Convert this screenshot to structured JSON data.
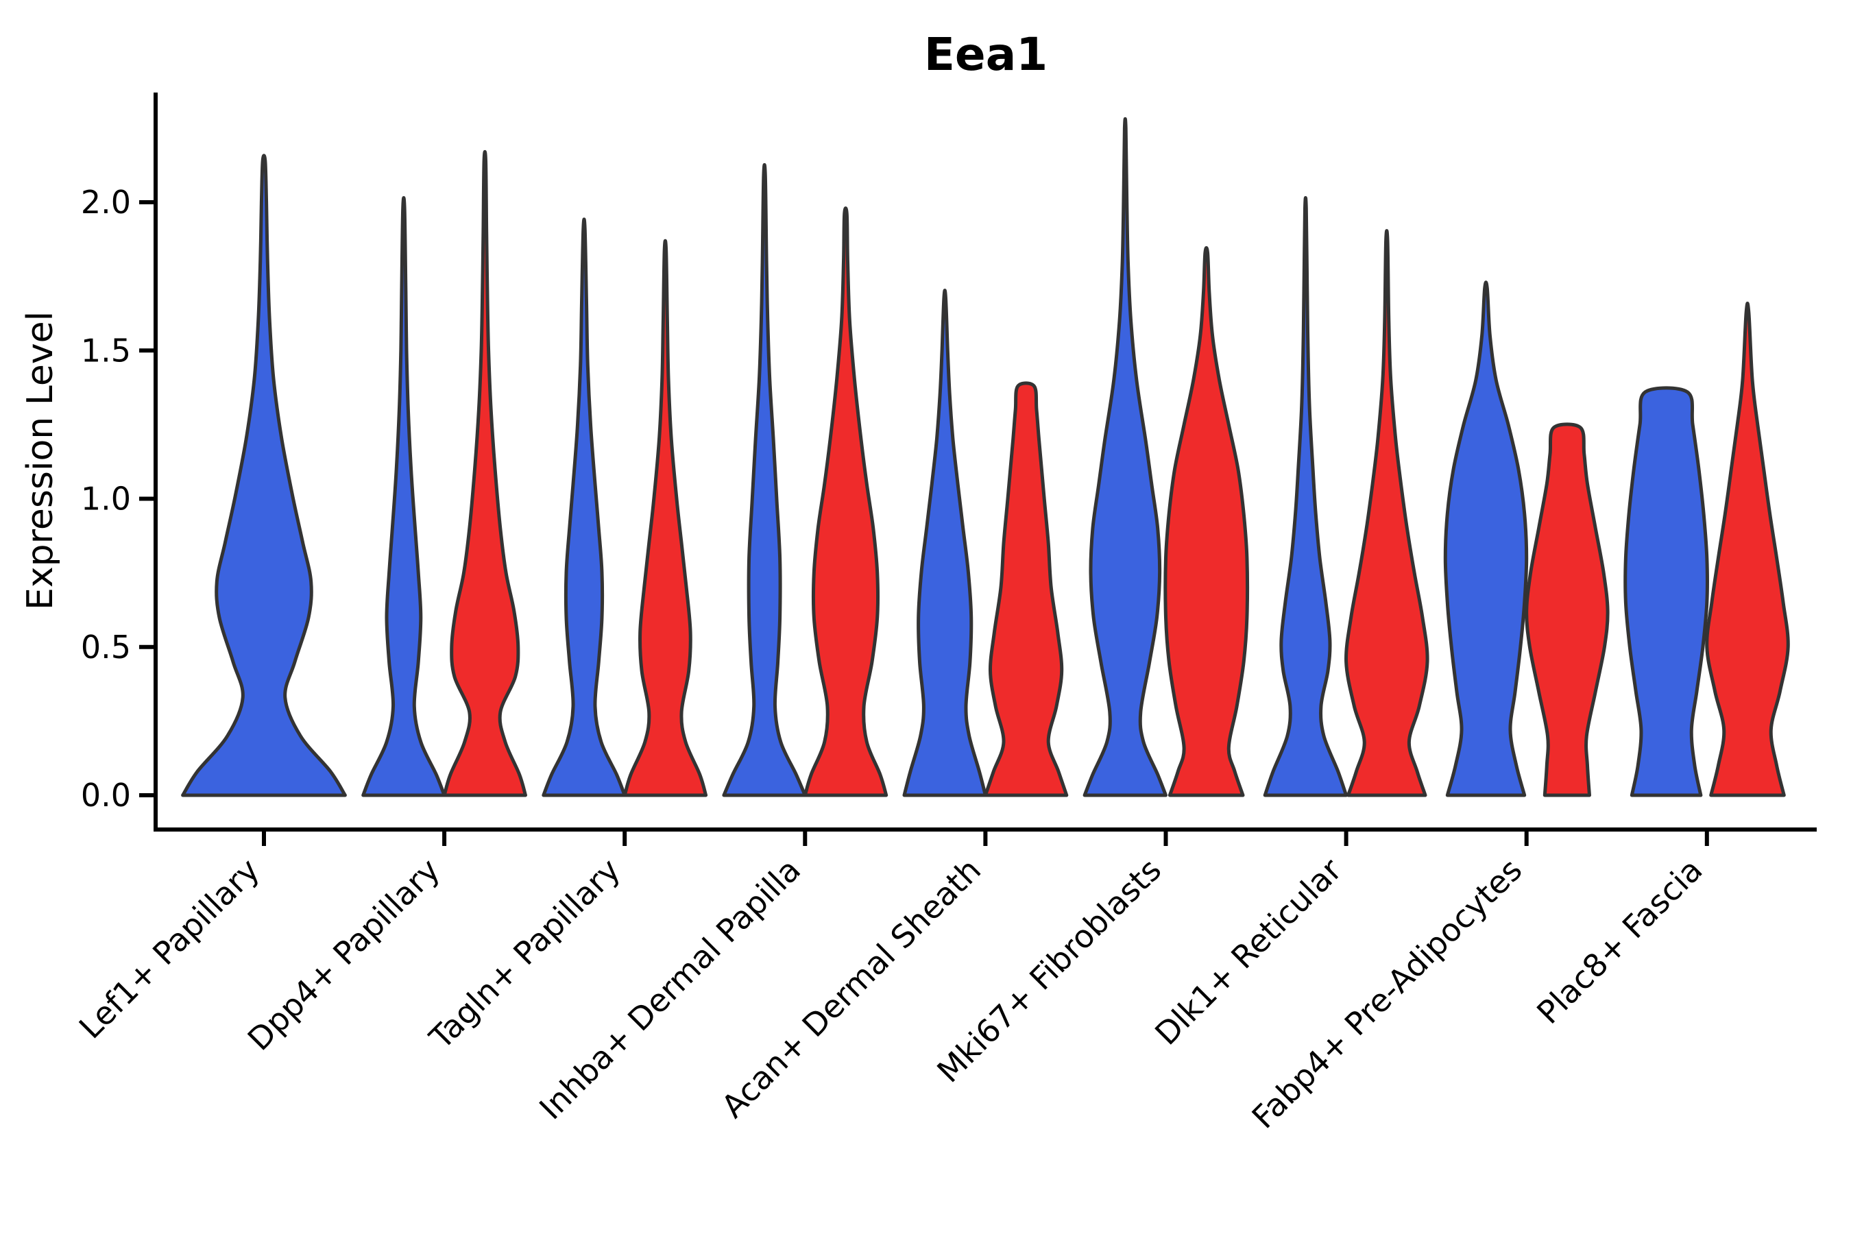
{
  "title": "Eea1",
  "y_axis": {
    "label": "Expression Level",
    "tick_labels": [
      "0.0",
      "0.5",
      "1.0",
      "1.5",
      "2.0"
    ],
    "tick_values": [
      0.0,
      0.5,
      1.0,
      1.5,
      2.0
    ]
  },
  "colors": {
    "blue": "#3B63DF",
    "red": "#EF2B2B",
    "edge": "#333333",
    "axis": "#000000",
    "background": "#FFFFFF"
  },
  "chart_data": {
    "type": "violin",
    "title": "Eea1",
    "xlabel": "",
    "ylabel": "Expression Level",
    "ylim": [
      -0.12,
      2.37
    ],
    "grid": false,
    "legend": "none",
    "categories": [
      "Lef1+ Papillary",
      "Dpp4+ Papillary",
      "Tagln+ Papillary",
      "Inhba+ Dermal Papilla",
      "Acan+ Dermal Sheath",
      "Mki67+ Fibroblasts",
      "Dlk1+ Reticular",
      "Fabp4+ Pre-Adipocytes",
      "Plac8+ Fascia"
    ],
    "series": [
      {
        "id": "blue",
        "color_key": "blue"
      },
      {
        "id": "red",
        "color_key": "red"
      }
    ],
    "violins": [
      {
        "category": "Lef1+ Papillary",
        "series": "blue",
        "single": true,
        "max_expression": 2.14,
        "profile": [
          [
            0,
            1.0
          ],
          [
            0.08,
            0.82
          ],
          [
            0.2,
            0.45
          ],
          [
            0.33,
            0.26
          ],
          [
            0.45,
            0.38
          ],
          [
            0.6,
            0.55
          ],
          [
            0.72,
            0.58
          ],
          [
            0.85,
            0.48
          ],
          [
            1.0,
            0.36
          ],
          [
            1.2,
            0.22
          ],
          [
            1.4,
            0.12
          ],
          [
            1.6,
            0.07
          ],
          [
            1.8,
            0.045
          ],
          [
            2.0,
            0.03
          ],
          [
            2.14,
            0.015
          ]
        ]
      },
      {
        "category": "Dpp4+ Papillary",
        "series": "blue",
        "single": false,
        "max_expression": 1.98,
        "profile": [
          [
            0,
            1.0
          ],
          [
            0.07,
            0.8
          ],
          [
            0.18,
            0.42
          ],
          [
            0.3,
            0.26
          ],
          [
            0.45,
            0.36
          ],
          [
            0.6,
            0.42
          ],
          [
            0.75,
            0.36
          ],
          [
            0.9,
            0.28
          ],
          [
            1.1,
            0.18
          ],
          [
            1.3,
            0.11
          ],
          [
            1.5,
            0.07
          ],
          [
            1.7,
            0.05
          ],
          [
            1.98,
            0.02
          ]
        ]
      },
      {
        "category": "Dpp4+ Papillary",
        "series": "red",
        "single": false,
        "max_expression": 2.14,
        "profile": [
          [
            0,
            1.0
          ],
          [
            0.07,
            0.85
          ],
          [
            0.18,
            0.5
          ],
          [
            0.28,
            0.38
          ],
          [
            0.4,
            0.75
          ],
          [
            0.5,
            0.82
          ],
          [
            0.62,
            0.72
          ],
          [
            0.75,
            0.52
          ],
          [
            0.9,
            0.38
          ],
          [
            1.1,
            0.25
          ],
          [
            1.3,
            0.15
          ],
          [
            1.5,
            0.09
          ],
          [
            1.7,
            0.06
          ],
          [
            1.9,
            0.04
          ],
          [
            2.14,
            0.02
          ]
        ]
      },
      {
        "category": "Tagln+ Papillary",
        "series": "blue",
        "single": false,
        "max_expression": 1.91,
        "profile": [
          [
            0,
            1.0
          ],
          [
            0.07,
            0.8
          ],
          [
            0.18,
            0.42
          ],
          [
            0.3,
            0.27
          ],
          [
            0.45,
            0.36
          ],
          [
            0.6,
            0.44
          ],
          [
            0.75,
            0.44
          ],
          [
            0.9,
            0.36
          ],
          [
            1.05,
            0.27
          ],
          [
            1.25,
            0.16
          ],
          [
            1.45,
            0.09
          ],
          [
            1.65,
            0.06
          ],
          [
            1.91,
            0.02
          ]
        ]
      },
      {
        "category": "Tagln+ Papillary",
        "series": "red",
        "single": false,
        "max_expression": 1.84,
        "profile": [
          [
            0,
            1.0
          ],
          [
            0.07,
            0.85
          ],
          [
            0.18,
            0.5
          ],
          [
            0.28,
            0.4
          ],
          [
            0.42,
            0.58
          ],
          [
            0.55,
            0.62
          ],
          [
            0.7,
            0.52
          ],
          [
            0.85,
            0.4
          ],
          [
            1.0,
            0.28
          ],
          [
            1.2,
            0.15
          ],
          [
            1.4,
            0.08
          ],
          [
            1.6,
            0.05
          ],
          [
            1.84,
            0.02
          ]
        ]
      },
      {
        "category": "Inhba+ Dermal Papilla",
        "series": "blue",
        "single": false,
        "max_expression": 2.09,
        "profile": [
          [
            0,
            1.0
          ],
          [
            0.07,
            0.78
          ],
          [
            0.18,
            0.4
          ],
          [
            0.3,
            0.26
          ],
          [
            0.45,
            0.33
          ],
          [
            0.6,
            0.38
          ],
          [
            0.8,
            0.38
          ],
          [
            1.0,
            0.3
          ],
          [
            1.2,
            0.22
          ],
          [
            1.4,
            0.13
          ],
          [
            1.6,
            0.08
          ],
          [
            1.8,
            0.05
          ],
          [
            2.09,
            0.02
          ]
        ]
      },
      {
        "category": "Inhba+ Dermal Papilla",
        "series": "red",
        "single": false,
        "max_expression": 1.96,
        "profile": [
          [
            0,
            1.0
          ],
          [
            0.07,
            0.85
          ],
          [
            0.18,
            0.52
          ],
          [
            0.3,
            0.45
          ],
          [
            0.45,
            0.65
          ],
          [
            0.6,
            0.78
          ],
          [
            0.75,
            0.78
          ],
          [
            0.9,
            0.68
          ],
          [
            1.05,
            0.52
          ],
          [
            1.2,
            0.38
          ],
          [
            1.4,
            0.22
          ],
          [
            1.6,
            0.1
          ],
          [
            1.8,
            0.05
          ],
          [
            1.96,
            0.03
          ]
        ]
      },
      {
        "category": "Acan+ Dermal Sheath",
        "series": "blue",
        "single": false,
        "max_expression": 1.68,
        "profile": [
          [
            0,
            1.0
          ],
          [
            0.08,
            0.85
          ],
          [
            0.2,
            0.6
          ],
          [
            0.3,
            0.52
          ],
          [
            0.45,
            0.62
          ],
          [
            0.6,
            0.65
          ],
          [
            0.75,
            0.58
          ],
          [
            0.9,
            0.45
          ],
          [
            1.05,
            0.32
          ],
          [
            1.2,
            0.2
          ],
          [
            1.35,
            0.12
          ],
          [
            1.5,
            0.07
          ],
          [
            1.68,
            0.02
          ]
        ]
      },
      {
        "category": "Acan+ Dermal Sheath",
        "series": "red",
        "single": false,
        "max_expression": 1.38,
        "flat_top": true,
        "profile": [
          [
            0,
            1.0
          ],
          [
            0.08,
            0.8
          ],
          [
            0.18,
            0.55
          ],
          [
            0.3,
            0.75
          ],
          [
            0.42,
            0.88
          ],
          [
            0.55,
            0.78
          ],
          [
            0.7,
            0.62
          ],
          [
            0.85,
            0.55
          ],
          [
            1.0,
            0.45
          ],
          [
            1.2,
            0.32
          ],
          [
            1.3,
            0.26
          ],
          [
            1.38,
            0.2
          ]
        ]
      },
      {
        "category": "Mki67+ Fibroblasts",
        "series": "blue",
        "single": false,
        "max_expression": 2.25,
        "profile": [
          [
            0,
            1.0
          ],
          [
            0.07,
            0.8
          ],
          [
            0.18,
            0.45
          ],
          [
            0.28,
            0.38
          ],
          [
            0.45,
            0.6
          ],
          [
            0.6,
            0.78
          ],
          [
            0.75,
            0.85
          ],
          [
            0.9,
            0.8
          ],
          [
            1.05,
            0.65
          ],
          [
            1.2,
            0.5
          ],
          [
            1.4,
            0.28
          ],
          [
            1.6,
            0.14
          ],
          [
            1.8,
            0.07
          ],
          [
            2.0,
            0.04
          ],
          [
            2.25,
            0.015
          ]
        ]
      },
      {
        "category": "Mki67+ Fibroblasts",
        "series": "red",
        "single": false,
        "max_expression": 1.83,
        "profile": [
          [
            0,
            0.9
          ],
          [
            0.08,
            0.7
          ],
          [
            0.16,
            0.55
          ],
          [
            0.3,
            0.75
          ],
          [
            0.45,
            0.92
          ],
          [
            0.6,
            1.0
          ],
          [
            0.8,
            1.0
          ],
          [
            0.95,
            0.92
          ],
          [
            1.1,
            0.78
          ],
          [
            1.25,
            0.55
          ],
          [
            1.4,
            0.32
          ],
          [
            1.55,
            0.15
          ],
          [
            1.7,
            0.07
          ],
          [
            1.83,
            0.03
          ]
        ]
      },
      {
        "category": "Dlk1+ Reticular",
        "series": "blue",
        "single": false,
        "max_expression": 1.98,
        "profile": [
          [
            0,
            1.0
          ],
          [
            0.08,
            0.8
          ],
          [
            0.2,
            0.45
          ],
          [
            0.3,
            0.38
          ],
          [
            0.42,
            0.55
          ],
          [
            0.52,
            0.6
          ],
          [
            0.65,
            0.5
          ],
          [
            0.8,
            0.35
          ],
          [
            0.95,
            0.25
          ],
          [
            1.1,
            0.18
          ],
          [
            1.3,
            0.1
          ],
          [
            1.5,
            0.06
          ],
          [
            1.7,
            0.04
          ],
          [
            1.98,
            0.015
          ]
        ]
      },
      {
        "category": "Dlk1+ Reticular",
        "series": "red",
        "single": false,
        "max_expression": 1.87,
        "profile": [
          [
            0,
            0.95
          ],
          [
            0.08,
            0.75
          ],
          [
            0.18,
            0.55
          ],
          [
            0.3,
            0.8
          ],
          [
            0.45,
            1.0
          ],
          [
            0.6,
            0.88
          ],
          [
            0.75,
            0.68
          ],
          [
            0.9,
            0.5
          ],
          [
            1.05,
            0.35
          ],
          [
            1.2,
            0.22
          ],
          [
            1.4,
            0.1
          ],
          [
            1.6,
            0.05
          ],
          [
            1.87,
            0.02
          ]
        ]
      },
      {
        "category": "Fabp4+ Pre-Adipocytes",
        "series": "blue",
        "single": false,
        "max_expression": 1.71,
        "profile": [
          [
            0,
            0.95
          ],
          [
            0.1,
            0.75
          ],
          [
            0.22,
            0.6
          ],
          [
            0.35,
            0.72
          ],
          [
            0.5,
            0.85
          ],
          [
            0.65,
            0.95
          ],
          [
            0.8,
            1.0
          ],
          [
            0.95,
            0.95
          ],
          [
            1.1,
            0.8
          ],
          [
            1.25,
            0.55
          ],
          [
            1.4,
            0.25
          ],
          [
            1.55,
            0.1
          ],
          [
            1.71,
            0.03
          ]
        ]
      },
      {
        "category": "Fabp4+ Pre-Adipocytes",
        "series": "red",
        "single": false,
        "max_expression": 1.24,
        "flat_top": true,
        "profile": [
          [
            0,
            0.55
          ],
          [
            0.1,
            0.5
          ],
          [
            0.2,
            0.48
          ],
          [
            0.35,
            0.7
          ],
          [
            0.5,
            0.92
          ],
          [
            0.62,
            1.0
          ],
          [
            0.75,
            0.9
          ],
          [
            0.9,
            0.7
          ],
          [
            1.05,
            0.5
          ],
          [
            1.15,
            0.42
          ],
          [
            1.24,
            0.33
          ]
        ]
      },
      {
        "category": "Plac8+ Fascia",
        "series": "blue",
        "single": false,
        "max_expression": 1.36,
        "flat_top": true,
        "profile": [
          [
            0,
            0.85
          ],
          [
            0.1,
            0.7
          ],
          [
            0.22,
            0.62
          ],
          [
            0.35,
            0.75
          ],
          [
            0.5,
            0.9
          ],
          [
            0.65,
            1.0
          ],
          [
            0.8,
            1.0
          ],
          [
            0.95,
            0.92
          ],
          [
            1.1,
            0.8
          ],
          [
            1.25,
            0.65
          ],
          [
            1.36,
            0.52
          ]
        ]
      },
      {
        "category": "Plac8+ Fascia",
        "series": "red",
        "single": false,
        "max_expression": 1.63,
        "profile": [
          [
            0,
            0.9
          ],
          [
            0.1,
            0.72
          ],
          [
            0.22,
            0.58
          ],
          [
            0.35,
            0.8
          ],
          [
            0.5,
            1.0
          ],
          [
            0.65,
            0.88
          ],
          [
            0.8,
            0.72
          ],
          [
            0.95,
            0.55
          ],
          [
            1.1,
            0.4
          ],
          [
            1.25,
            0.25
          ],
          [
            1.4,
            0.12
          ],
          [
            1.63,
            0.03
          ]
        ]
      }
    ]
  }
}
